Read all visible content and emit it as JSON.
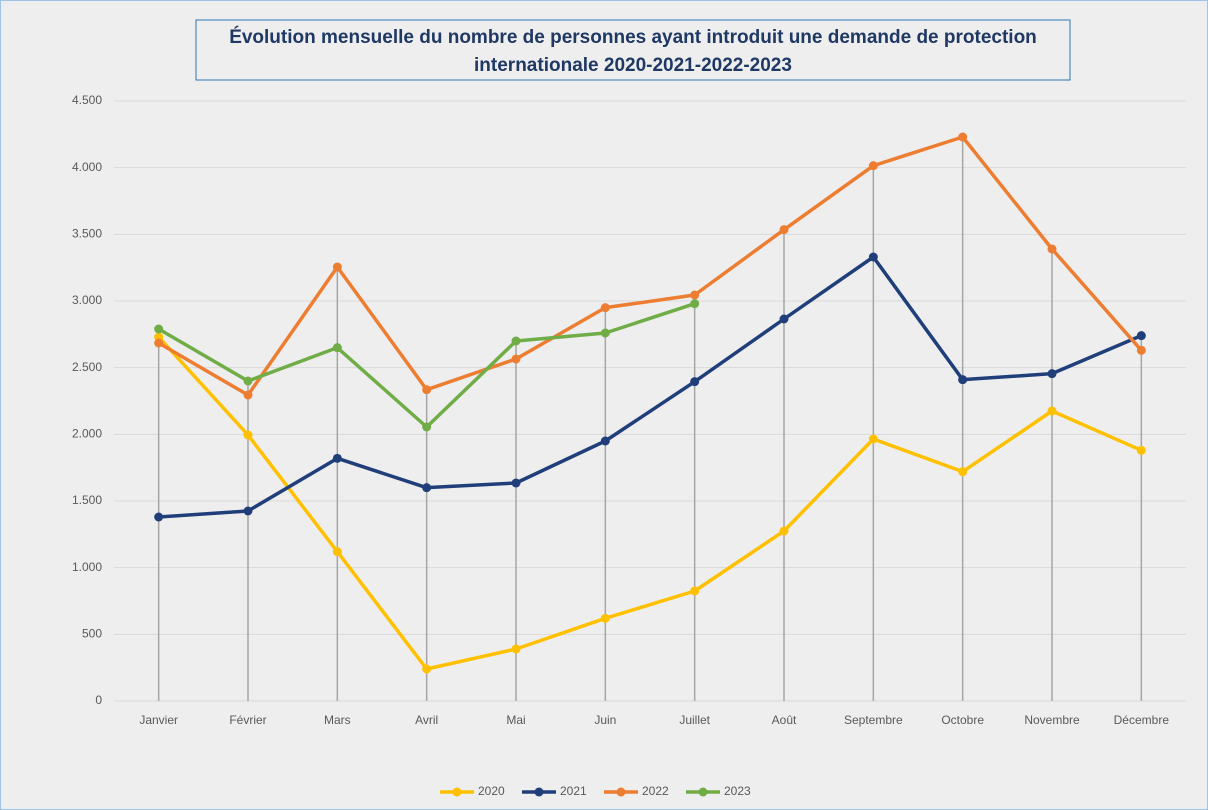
{
  "chart_data": {
    "type": "line",
    "title_lines": [
      "Évolution mensuelle du nombre de personnes ayant introduit une demande de protection",
      "internationale 2020-2021-2022-2023"
    ],
    "categories": [
      "Janvier",
      "Février",
      "Mars",
      "Avril",
      "Mai",
      "Juin",
      "Juillet",
      "Août",
      "Septembre",
      "Octobre",
      "Novembre",
      "Décembre"
    ],
    "series": [
      {
        "name": "2020",
        "color": "#ffc000",
        "values": [
          2730,
          1995,
          1120,
          240,
          390,
          620,
          825,
          1275,
          1965,
          1720,
          2175,
          1880
        ]
      },
      {
        "name": "2021",
        "color": "#203f7a",
        "values": [
          1380,
          1425,
          1820,
          1600,
          1635,
          1950,
          2395,
          2865,
          3330,
          2410,
          2455,
          2740
        ]
      },
      {
        "name": "2022",
        "color": "#ed7d31",
        "values": [
          2685,
          2295,
          3255,
          2335,
          2565,
          2950,
          3045,
          3535,
          4015,
          4230,
          3390,
          2630
        ]
      },
      {
        "name": "2023",
        "color": "#70ad47",
        "values": [
          2790,
          2400,
          2650,
          2055,
          2700,
          2760,
          2980,
          null,
          null,
          null,
          null,
          null
        ]
      }
    ],
    "ylim": [
      0,
      4500
    ],
    "yticks": [
      0,
      500,
      {
        "value": 1000,
        "label": "1.000"
      },
      {
        "value": 1500,
        "label": "1.500"
      },
      {
        "value": 2000,
        "label": "2.000"
      },
      {
        "value": 2500,
        "label": "2.500"
      },
      {
        "value": 3000,
        "label": "3.000"
      },
      {
        "value": 3500,
        "label": "3.500"
      },
      {
        "value": 4000,
        "label": "4.000"
      },
      {
        "value": 4500,
        "label": "4.500"
      }
    ],
    "grid": true,
    "drop_lines": true,
    "legend": "bottom"
  }
}
